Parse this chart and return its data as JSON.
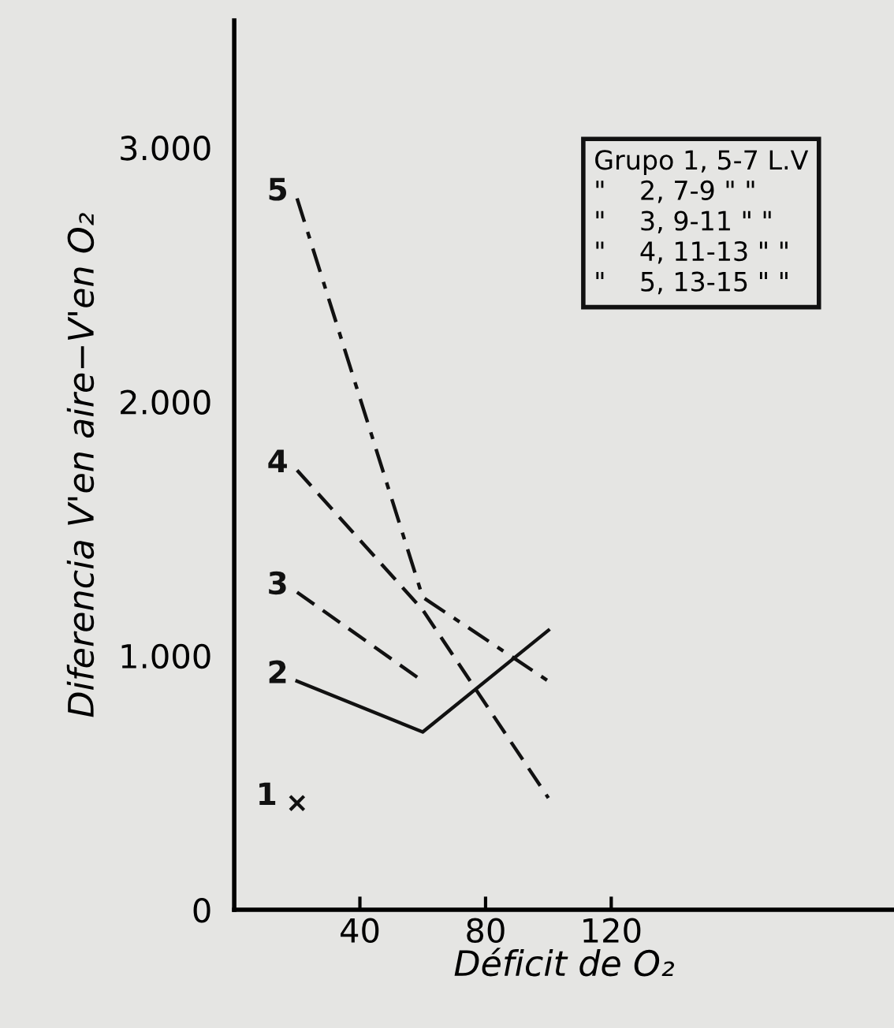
{
  "chart_data": {
    "type": "line",
    "xlabel": "Déficit de O₂",
    "ylabel": "Diferencia V'en aire−V'en O₂",
    "xlim": [
      0,
      210
    ],
    "ylim": [
      0,
      3500
    ],
    "xticks": [
      40,
      80,
      120
    ],
    "yticks": [
      0,
      {
        "value": 1000,
        "label": "1.000"
      },
      {
        "value": 2000,
        "label": "2.000"
      },
      {
        "value": 3000,
        "label": "3.000"
      }
    ],
    "grid": false,
    "legend": false,
    "series": [
      {
        "name": "1",
        "color": "#111111",
        "type": "scatter",
        "marker": "cross",
        "x": [
          20
        ],
        "values": [
          420
        ]
      },
      {
        "name": "2",
        "color": "#111111",
        "line_style": "solid",
        "x": [
          20,
          60,
          100
        ],
        "values": [
          900,
          700,
          1100
        ]
      },
      {
        "name": "3",
        "color": "#111111",
        "line_style": "dashed",
        "x": [
          20,
          60
        ],
        "values": [
          1250,
          900
        ]
      },
      {
        "name": "4",
        "color": "#111111",
        "line_style": "dashed",
        "x": [
          20,
          60,
          100
        ],
        "values": [
          1730,
          1180,
          440
        ]
      },
      {
        "name": "5",
        "color": "#111111",
        "line_style": "dashdot",
        "x": [
          20,
          60,
          100
        ],
        "values": [
          2800,
          1230,
          900
        ]
      }
    ],
    "annotations": [
      "Grupo 1, 5-7 L.V",
      "\"    2, 7-9 \" \"",
      "\"    3, 9-11 \" \"",
      "\"    4, 11-13 \" \"",
      "\"    5, 13-15 \" \""
    ]
  }
}
